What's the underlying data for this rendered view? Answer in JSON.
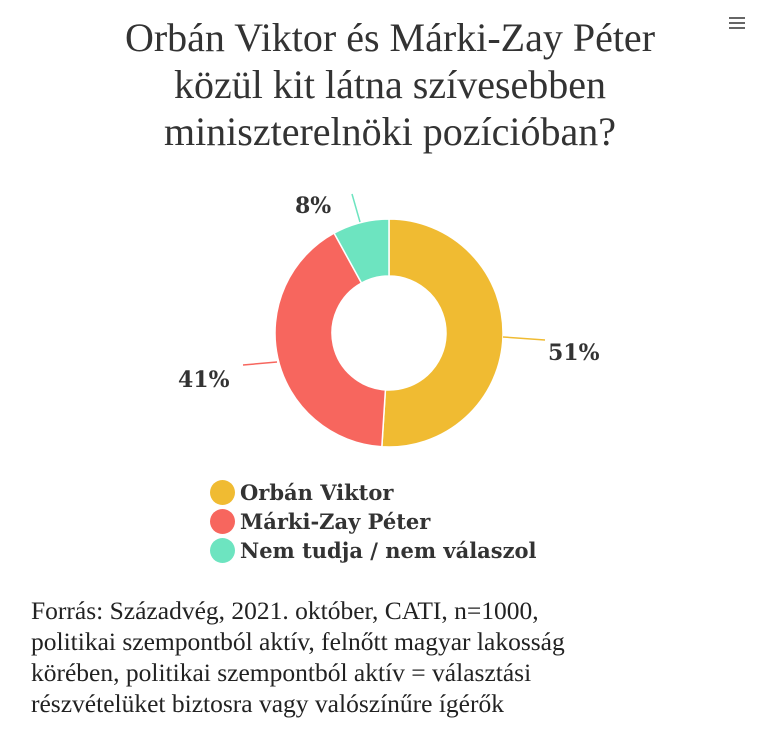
{
  "header": {
    "title_lines": [
      "Orbán Viktor és Márki-Zay Péter",
      "közül kit látna szívesebben",
      "miniszterelnöki pozícióban?"
    ],
    "menu_icon": "hamburger-menu-icon"
  },
  "chart_data": {
    "type": "pie",
    "subtype": "donut",
    "title": "Orbán Viktor és Márki-Zay Péter közül kit látna szívesebben miniszterelnöki pozícióban?",
    "categories": [
      "Orbán Viktor",
      "Márki-Zay Péter",
      "Nem tudja / nem válaszol"
    ],
    "values": [
      51,
      41,
      8
    ],
    "unit": "%",
    "data_labels": [
      "51%",
      "41%",
      "8%"
    ],
    "colors": [
      "#F0BB32",
      "#F7665E",
      "#6DE4C0"
    ],
    "legend_position": "bottom",
    "start_angle": 0,
    "direction": "clockwise"
  },
  "legend": {
    "items": [
      {
        "label": "Orbán Viktor",
        "color": "#F0BB32"
      },
      {
        "label": "Márki-Zay Péter",
        "color": "#F7665E"
      },
      {
        "label": "Nem tudja / nem válaszol",
        "color": "#6DE4C0"
      }
    ]
  },
  "source": {
    "lines": [
      "Forrás: Századvég, 2021. október, CATI, n=1000,",
      "politikai szempontból aktív, felnőtt magyar lakosság",
      "körében, politikai szempontból aktív = választási",
      "részvételüket biztosra vagy valószínűre ígérők"
    ]
  }
}
